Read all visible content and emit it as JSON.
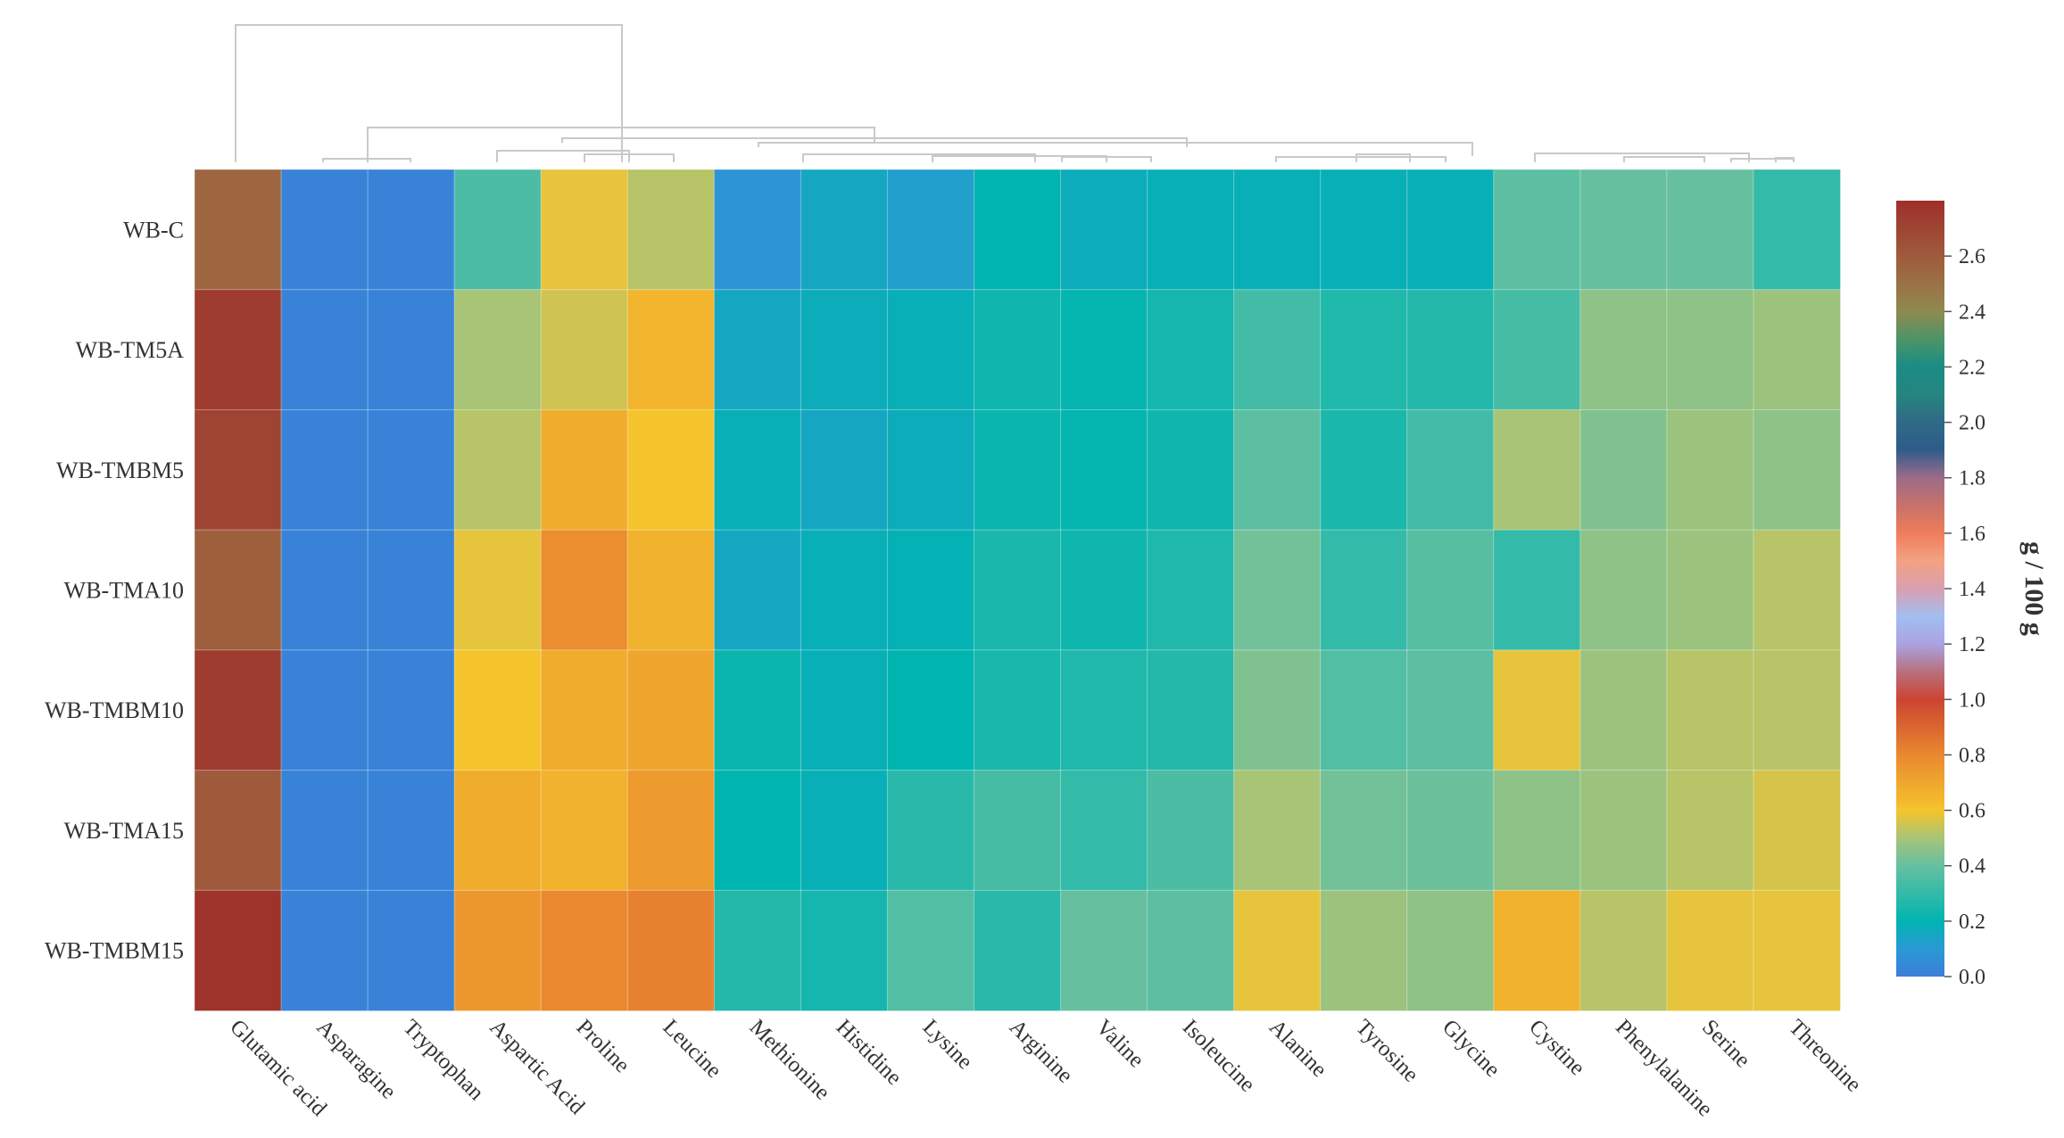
{
  "chart_data": {
    "type": "heatmap",
    "title": "",
    "rows": [
      "WB-C",
      "WB-TM5A",
      "WB-TMBM5",
      "WB-TMA10",
      "WB-TMBM10",
      "WB-TMA15",
      "WB-TMBM15"
    ],
    "columns": [
      "Glutamic acid",
      "Asparagine",
      "Tryptophan",
      "Aspartic Acid",
      "Proline",
      "Leucine",
      "Methionine",
      "Histidine",
      "Lysine",
      "Arginine",
      "Valine",
      "Isoleucine",
      "Alanine",
      "Tyrosine",
      "Glycine",
      "Cystine",
      "Phenylalanine",
      "Serine",
      "Threonine"
    ],
    "values": [
      [
        2.55,
        0.02,
        0.02,
        0.35,
        0.58,
        0.52,
        0.08,
        0.15,
        0.12,
        0.2,
        0.17,
        0.18,
        0.18,
        0.18,
        0.18,
        0.38,
        0.4,
        0.4,
        0.3
      ],
      [
        2.74,
        0.02,
        0.02,
        0.5,
        0.55,
        0.65,
        0.15,
        0.17,
        0.18,
        0.23,
        0.21,
        0.24,
        0.33,
        0.26,
        0.27,
        0.34,
        0.46,
        0.46,
        0.48
      ],
      [
        2.7,
        0.02,
        0.02,
        0.52,
        0.68,
        0.6,
        0.18,
        0.15,
        0.17,
        0.22,
        0.21,
        0.23,
        0.38,
        0.25,
        0.33,
        0.5,
        0.44,
        0.48,
        0.46
      ],
      [
        2.58,
        0.02,
        0.02,
        0.58,
        0.78,
        0.66,
        0.15,
        0.18,
        0.19,
        0.25,
        0.23,
        0.26,
        0.42,
        0.3,
        0.37,
        0.3,
        0.46,
        0.48,
        0.52
      ],
      [
        2.74,
        0.02,
        0.02,
        0.6,
        0.68,
        0.7,
        0.22,
        0.18,
        0.2,
        0.25,
        0.26,
        0.27,
        0.44,
        0.36,
        0.38,
        0.58,
        0.48,
        0.52,
        0.52
      ],
      [
        2.6,
        0.02,
        0.02,
        0.68,
        0.66,
        0.74,
        0.2,
        0.18,
        0.28,
        0.34,
        0.3,
        0.35,
        0.5,
        0.42,
        0.41,
        0.46,
        0.48,
        0.52,
        0.56
      ],
      [
        2.78,
        0.02,
        0.02,
        0.75,
        0.8,
        0.82,
        0.27,
        0.24,
        0.36,
        0.28,
        0.4,
        0.38,
        0.58,
        0.48,
        0.46,
        0.66,
        0.52,
        0.58,
        0.58
      ]
    ],
    "colorbar": {
      "label": "g / 100 g",
      "min": 0.0,
      "max": 2.8,
      "ticks": [
        "0.0",
        "0.2",
        "0.4",
        "0.6",
        "0.8",
        "1.0",
        "1.2",
        "1.4",
        "1.6",
        "1.8",
        "2.0",
        "2.2",
        "2.4",
        "2.6"
      ]
    },
    "column_dendrogram": true,
    "xlabel": "",
    "ylabel": ""
  }
}
